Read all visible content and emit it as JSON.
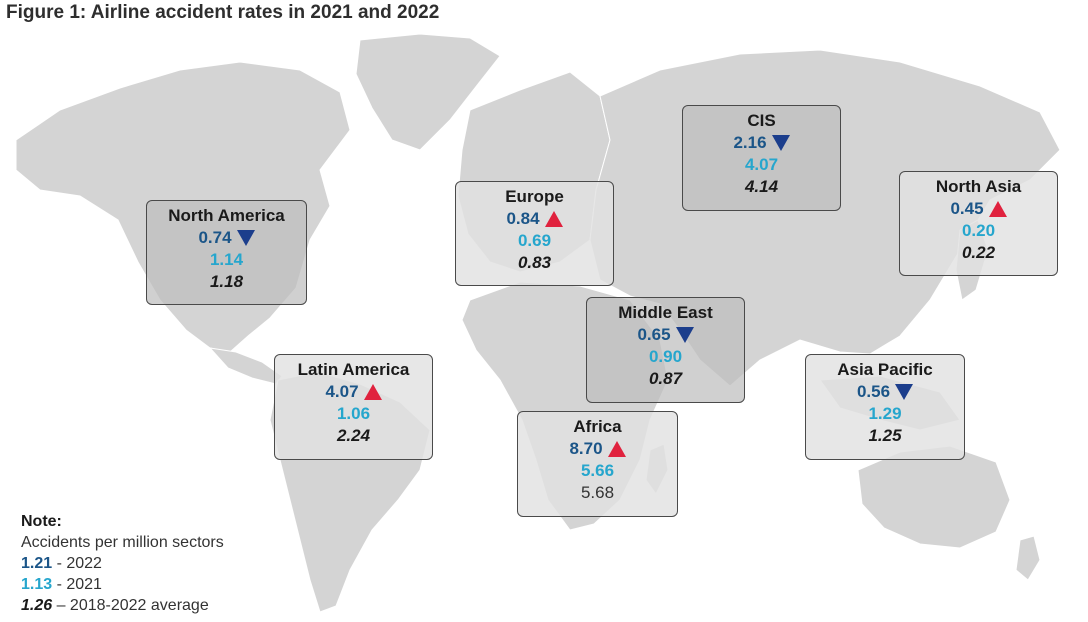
{
  "title": "Figure 1: Airline accident rates in 2021 and 2022",
  "colors": {
    "rate_2022": "#1b5588",
    "rate_2021": "#26a6cd",
    "increase": "#e0223e",
    "decrease": "#1c3e8c"
  },
  "regions": {
    "north_america": {
      "name": "North America",
      "rate_2022": "0.74",
      "trend": "down",
      "rate_2021": "1.14",
      "avg_2018_2022": "1.18"
    },
    "europe": {
      "name": "Europe",
      "rate_2022": "0.84",
      "trend": "up",
      "rate_2021": "0.69",
      "avg_2018_2022": "0.83"
    },
    "cis": {
      "name": "CIS",
      "rate_2022": "2.16",
      "trend": "down",
      "rate_2021": "4.07",
      "avg_2018_2022": "4.14"
    },
    "north_asia": {
      "name": "North Asia",
      "rate_2022": "0.45",
      "trend": "up",
      "rate_2021": "0.20",
      "avg_2018_2022": "0.22"
    },
    "middle_east": {
      "name": "Middle East",
      "rate_2022": "0.65",
      "trend": "down",
      "rate_2021": "0.90",
      "avg_2018_2022": "0.87"
    },
    "latin_america": {
      "name": "Latin America",
      "rate_2022": "4.07",
      "trend": "up",
      "rate_2021": "1.06",
      "avg_2018_2022": "2.24"
    },
    "asia_pacific": {
      "name": "Asia Pacific",
      "rate_2022": "0.56",
      "trend": "down",
      "rate_2021": "1.29",
      "avg_2018_2022": "1.25"
    },
    "africa": {
      "name": "Africa",
      "rate_2022": "8.70",
      "trend": "up",
      "rate_2021": "5.66",
      "avg_2018_2022": "5.68"
    }
  },
  "note": {
    "heading": "Note:",
    "description": "Accidents per million sectors",
    "key_2022_value": "1.21",
    "key_2022_label": " - 2022",
    "key_2021_value": "1.13",
    "key_2021_label": " - 2021",
    "key_avg_value": "1.26",
    "key_avg_label": " – 2018-2022 average"
  }
}
